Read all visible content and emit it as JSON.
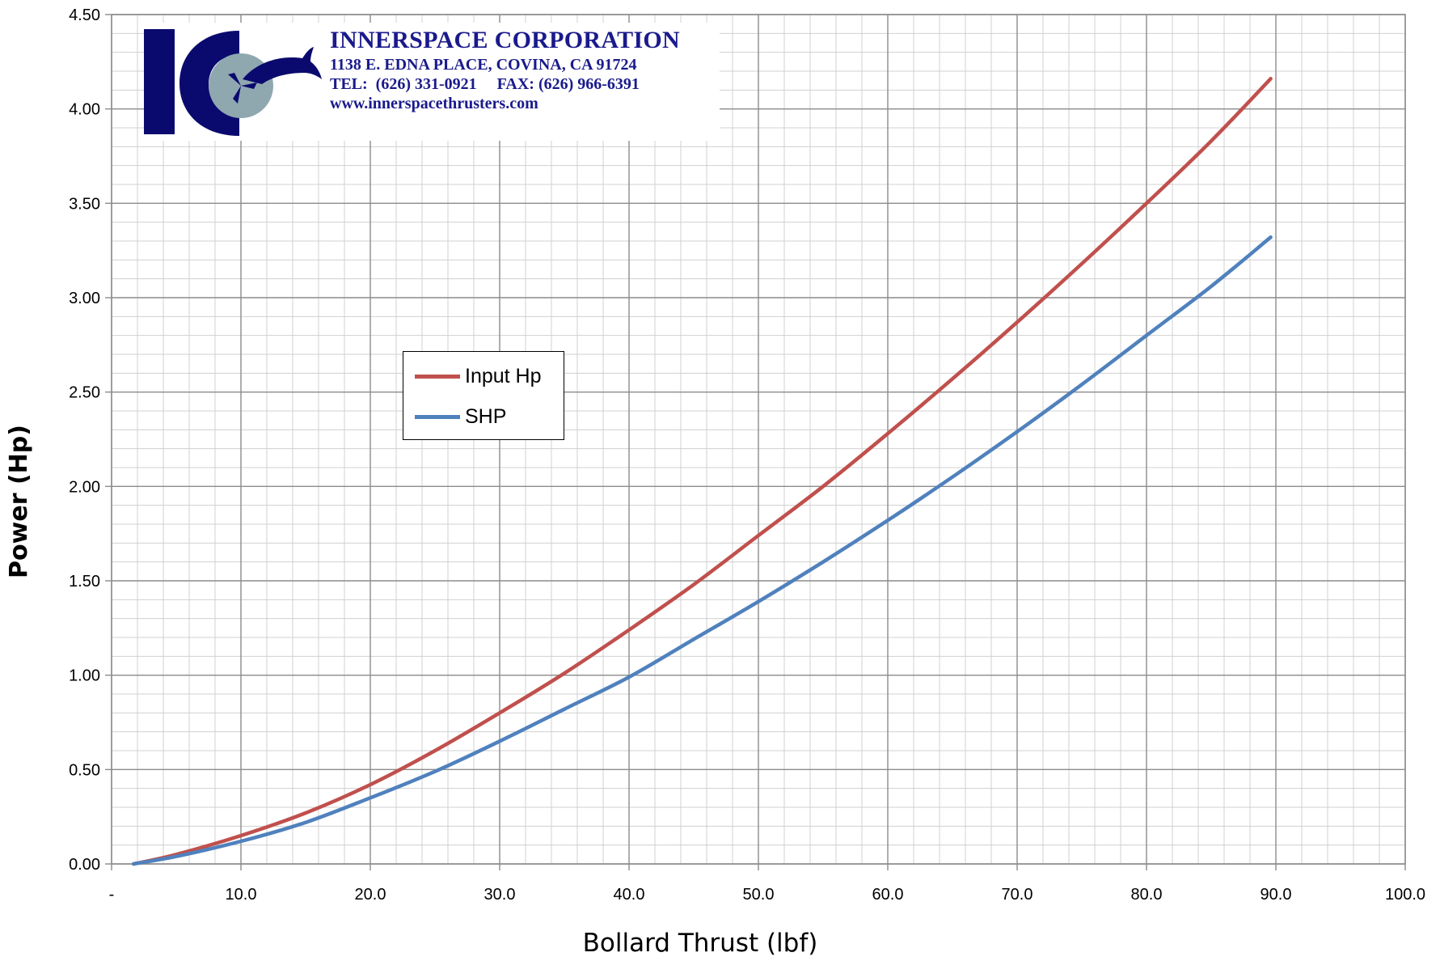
{
  "chart_data": {
    "type": "line",
    "xlabel": "Bollard Thrust (lbf)",
    "ylabel": "Power (Hp)",
    "xlim": [
      0,
      100
    ],
    "ylim": [
      0,
      4.5
    ],
    "x_ticks": [
      "-",
      "10.0",
      "20.0",
      "30.0",
      "40.0",
      "50.0",
      "60.0",
      "70.0",
      "80.0",
      "90.0",
      "100.0"
    ],
    "y_ticks": [
      "0.00",
      "0.50",
      "1.00",
      "1.50",
      "2.00",
      "2.50",
      "3.00",
      "3.50",
      "4.00",
      "4.50"
    ],
    "grid": true,
    "legend_position": "center-left",
    "series": [
      {
        "name": "Input Hp",
        "color": "#c0504d",
        "x": [
          1.7,
          5,
          10,
          15,
          20,
          25,
          30,
          35,
          40,
          45,
          50,
          55,
          60,
          65,
          70,
          75,
          80,
          85,
          89.6
        ],
        "y": [
          0.0,
          0.05,
          0.15,
          0.27,
          0.42,
          0.6,
          0.8,
          1.01,
          1.24,
          1.48,
          1.74,
          2.0,
          2.28,
          2.57,
          2.87,
          3.18,
          3.5,
          3.83,
          4.16
        ]
      },
      {
        "name": "SHP",
        "color": "#4f81bd",
        "x": [
          1.7,
          5,
          10,
          15,
          20,
          25,
          30,
          35,
          40,
          45,
          50,
          55,
          60,
          65,
          70,
          75,
          80,
          85,
          89.6
        ],
        "y": [
          0.0,
          0.04,
          0.12,
          0.22,
          0.35,
          0.49,
          0.65,
          0.82,
          0.99,
          1.19,
          1.39,
          1.6,
          1.82,
          2.05,
          2.29,
          2.54,
          2.8,
          3.06,
          3.32
        ]
      }
    ]
  },
  "logo": {
    "company_name": "INNERSPACE CORPORATION",
    "address": "1138 E. EDNA PLACE, COVINA, CA 91724",
    "phone_fax": "TEL:  (626) 331-0921     FAX: (626) 966-6391",
    "website": "www.innerspacethrusters.com",
    "mark_text": "IC",
    "colors": {
      "navy": "#0a0a6e",
      "sphere": "#8fa8b0",
      "brand_text": "#1a1a8c"
    }
  }
}
